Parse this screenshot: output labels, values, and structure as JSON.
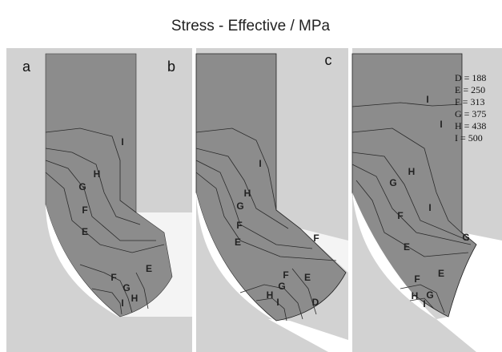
{
  "title": "Stress - Effective / MPa",
  "panels": [
    {
      "label": "a",
      "contour_labels": [
        "I",
        "H",
        "G",
        "F",
        "E",
        "F",
        "E",
        "G",
        "H",
        "I"
      ]
    },
    {
      "label": "b",
      "contour_labels": [
        "I",
        "H",
        "G",
        "F",
        "E",
        "F",
        "F",
        "E",
        "G",
        "H",
        "I",
        "D"
      ]
    },
    {
      "label": "c",
      "contour_labels": [
        "I",
        "I",
        "H",
        "G",
        "I",
        "F",
        "E",
        "G",
        "E",
        "F",
        "H",
        "G",
        "I"
      ]
    }
  ],
  "legend": [
    "D = 188",
    "E = 250",
    "F = 313",
    "G = 375",
    "H = 438",
    "I =  500"
  ]
}
